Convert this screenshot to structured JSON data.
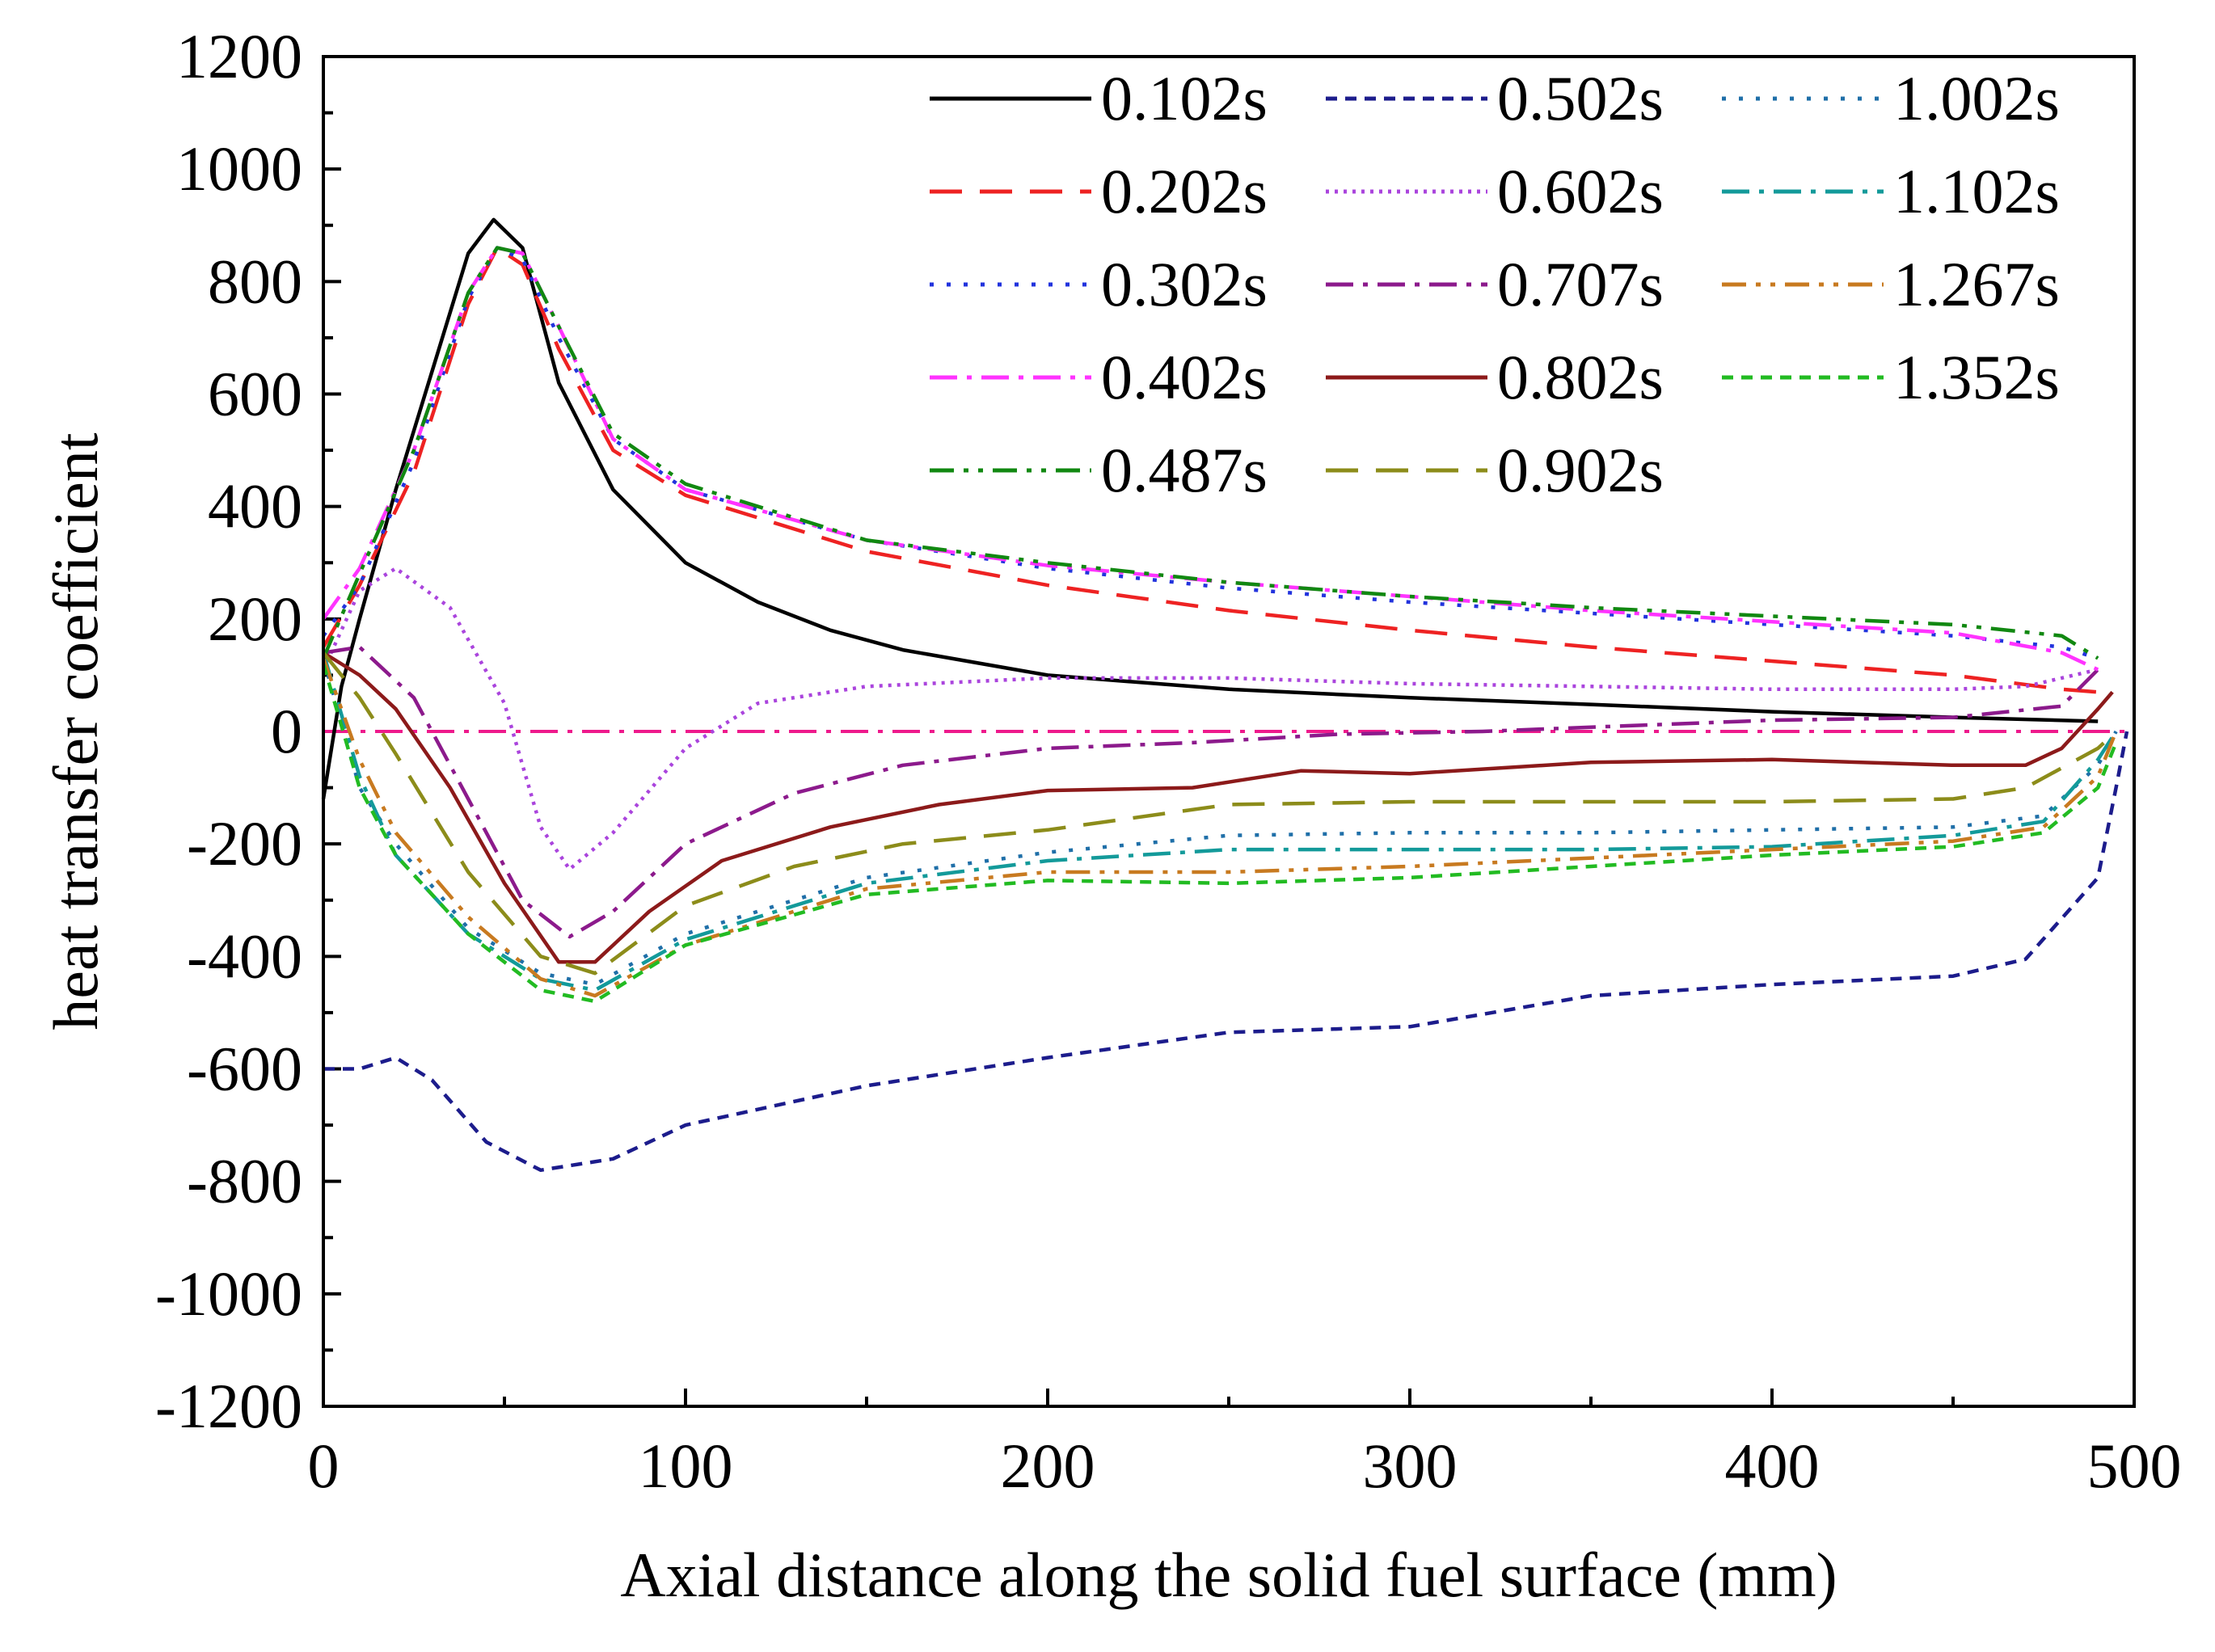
{
  "chart_data": {
    "type": "line",
    "title": "",
    "xlabel": "Axial distance along the solid fuel surface (mm)",
    "ylabel": "heat transfer coefficient",
    "xlim": [
      0,
      500
    ],
    "ylim": [
      -1200,
      1200
    ],
    "x_ticks": [
      0,
      100,
      200,
      300,
      400,
      500
    ],
    "y_ticks": [
      -1200,
      -1000,
      -800,
      -600,
      -400,
      -200,
      0,
      200,
      400,
      600,
      800,
      1000,
      1200
    ],
    "grid": false,
    "legend_position": "top-right",
    "series": [
      {
        "name": "0.102s",
        "color": "#000000",
        "dash": "solid",
        "points": [
          [
            0,
            -120
          ],
          [
            5,
            80
          ],
          [
            10,
            200
          ],
          [
            20,
            430
          ],
          [
            30,
            640
          ],
          [
            40,
            850
          ],
          [
            47,
            910
          ],
          [
            55,
            860
          ],
          [
            65,
            620
          ],
          [
            80,
            430
          ],
          [
            100,
            300
          ],
          [
            120,
            230
          ],
          [
            140,
            180
          ],
          [
            160,
            145
          ],
          [
            200,
            100
          ],
          [
            250,
            75
          ],
          [
            300,
            60
          ],
          [
            350,
            48
          ],
          [
            400,
            35
          ],
          [
            450,
            25
          ],
          [
            490,
            18
          ]
        ]
      },
      {
        "name": "0.502s",
        "color": "#1c1c8c",
        "dash": "shortdash",
        "points": [
          [
            0,
            -600
          ],
          [
            10,
            -600
          ],
          [
            20,
            -580
          ],
          [
            30,
            -620
          ],
          [
            45,
            -730
          ],
          [
            60,
            -780
          ],
          [
            80,
            -760
          ],
          [
            100,
            -700
          ],
          [
            150,
            -630
          ],
          [
            200,
            -580
          ],
          [
            250,
            -535
          ],
          [
            300,
            -525
          ],
          [
            350,
            -470
          ],
          [
            400,
            -450
          ],
          [
            450,
            -435
          ],
          [
            470,
            -405
          ],
          [
            490,
            -260
          ],
          [
            495,
            -100
          ],
          [
            498,
            0
          ]
        ]
      },
      {
        "name": "1.002s",
        "color": "#1f6fa8",
        "dash": "dotted",
        "points": [
          [
            0,
            130
          ],
          [
            10,
            -100
          ],
          [
            20,
            -200
          ],
          [
            40,
            -350
          ],
          [
            60,
            -430
          ],
          [
            75,
            -450
          ],
          [
            100,
            -360
          ],
          [
            150,
            -260
          ],
          [
            200,
            -215
          ],
          [
            250,
            -185
          ],
          [
            300,
            -180
          ],
          [
            350,
            -180
          ],
          [
            400,
            -175
          ],
          [
            450,
            -170
          ],
          [
            475,
            -150
          ],
          [
            490,
            -60
          ],
          [
            495,
            0
          ]
        ]
      },
      {
        "name": "0.202s",
        "color": "#ee2222",
        "dash": "longdash",
        "points": [
          [
            0,
            150
          ],
          [
            10,
            260
          ],
          [
            25,
            460
          ],
          [
            40,
            760
          ],
          [
            48,
            860
          ],
          [
            55,
            830
          ],
          [
            65,
            680
          ],
          [
            80,
            500
          ],
          [
            100,
            420
          ],
          [
            150,
            320
          ],
          [
            200,
            260
          ],
          [
            250,
            215
          ],
          [
            300,
            180
          ],
          [
            350,
            150
          ],
          [
            400,
            125
          ],
          [
            450,
            100
          ],
          [
            480,
            75
          ],
          [
            490,
            70
          ]
        ]
      },
      {
        "name": "0.602s",
        "color": "#aa44dd",
        "dash": "finedot",
        "points": [
          [
            0,
            110
          ],
          [
            10,
            250
          ],
          [
            20,
            290
          ],
          [
            35,
            220
          ],
          [
            50,
            50
          ],
          [
            60,
            -170
          ],
          [
            68,
            -245
          ],
          [
            80,
            -180
          ],
          [
            100,
            -30
          ],
          [
            120,
            50
          ],
          [
            150,
            80
          ],
          [
            200,
            95
          ],
          [
            250,
            95
          ],
          [
            300,
            85
          ],
          [
            350,
            80
          ],
          [
            400,
            75
          ],
          [
            450,
            75
          ],
          [
            470,
            80
          ],
          [
            490,
            110
          ]
        ]
      },
      {
        "name": "1.102s",
        "color": "#139a9a",
        "dash": "dashdot",
        "points": [
          [
            0,
            140
          ],
          [
            10,
            -80
          ],
          [
            20,
            -220
          ],
          [
            40,
            -360
          ],
          [
            60,
            -440
          ],
          [
            75,
            -460
          ],
          [
            100,
            -370
          ],
          [
            150,
            -270
          ],
          [
            200,
            -230
          ],
          [
            250,
            -210
          ],
          [
            300,
            -210
          ],
          [
            350,
            -210
          ],
          [
            400,
            -205
          ],
          [
            450,
            -185
          ],
          [
            475,
            -160
          ],
          [
            490,
            -50
          ],
          [
            495,
            0
          ]
        ]
      },
      {
        "name": "0.302s",
        "color": "#2233dd",
        "dash": "dotted",
        "points": [
          [
            0,
            170
          ],
          [
            10,
            260
          ],
          [
            25,
            480
          ],
          [
            40,
            770
          ],
          [
            48,
            860
          ],
          [
            55,
            840
          ],
          [
            65,
            700
          ],
          [
            80,
            520
          ],
          [
            100,
            430
          ],
          [
            150,
            340
          ],
          [
            200,
            290
          ],
          [
            250,
            255
          ],
          [
            300,
            230
          ],
          [
            350,
            210
          ],
          [
            400,
            190
          ],
          [
            450,
            170
          ],
          [
            480,
            150
          ],
          [
            490,
            130
          ]
        ]
      },
      {
        "name": "0.707s",
        "color": "#8c1a8c",
        "dash": "dashdot",
        "points": [
          [
            0,
            140
          ],
          [
            10,
            150
          ],
          [
            25,
            60
          ],
          [
            40,
            -120
          ],
          [
            55,
            -300
          ],
          [
            68,
            -365
          ],
          [
            80,
            -320
          ],
          [
            100,
            -200
          ],
          [
            130,
            -110
          ],
          [
            160,
            -60
          ],
          [
            200,
            -30
          ],
          [
            240,
            -20
          ],
          [
            280,
            -5
          ],
          [
            320,
            0
          ],
          [
            360,
            10
          ],
          [
            400,
            20
          ],
          [
            450,
            25
          ],
          [
            480,
            45
          ],
          [
            490,
            110
          ]
        ]
      },
      {
        "name": "1.267s",
        "color": "#c87a20",
        "dash": "dashdotdot",
        "points": [
          [
            0,
            130
          ],
          [
            10,
            -50
          ],
          [
            20,
            -180
          ],
          [
            40,
            -330
          ],
          [
            60,
            -440
          ],
          [
            75,
            -470
          ],
          [
            100,
            -380
          ],
          [
            150,
            -280
          ],
          [
            200,
            -250
          ],
          [
            250,
            -250
          ],
          [
            300,
            -240
          ],
          [
            350,
            -225
          ],
          [
            400,
            -210
          ],
          [
            450,
            -195
          ],
          [
            475,
            -170
          ],
          [
            490,
            -80
          ],
          [
            495,
            0
          ]
        ]
      },
      {
        "name": "0.402s",
        "color": "#ff33ff",
        "dash": "dashdot",
        "points": [
          [
            0,
            200
          ],
          [
            10,
            290
          ],
          [
            25,
            500
          ],
          [
            40,
            780
          ],
          [
            48,
            860
          ],
          [
            55,
            850
          ],
          [
            65,
            720
          ],
          [
            80,
            520
          ],
          [
            100,
            430
          ],
          [
            150,
            340
          ],
          [
            200,
            295
          ],
          [
            250,
            265
          ],
          [
            300,
            240
          ],
          [
            350,
            215
          ],
          [
            400,
            195
          ],
          [
            450,
            175
          ],
          [
            480,
            140
          ],
          [
            490,
            110
          ]
        ]
      },
      {
        "name": "0.802s",
        "color": "#8c1a1a",
        "dash": "solid",
        "points": [
          [
            0,
            140
          ],
          [
            10,
            100
          ],
          [
            20,
            40
          ],
          [
            35,
            -100
          ],
          [
            50,
            -270
          ],
          [
            65,
            -410
          ],
          [
            75,
            -410
          ],
          [
            90,
            -320
          ],
          [
            110,
            -230
          ],
          [
            140,
            -170
          ],
          [
            170,
            -130
          ],
          [
            200,
            -105
          ],
          [
            240,
            -100
          ],
          [
            270,
            -70
          ],
          [
            300,
            -75
          ],
          [
            350,
            -55
          ],
          [
            400,
            -50
          ],
          [
            450,
            -60
          ],
          [
            470,
            -60
          ],
          [
            480,
            -30
          ],
          [
            490,
            40
          ],
          [
            494,
            70
          ]
        ]
      },
      {
        "name": "1.352s",
        "color": "#22bb22",
        "dash": "shortdash",
        "points": [
          [
            0,
            120
          ],
          [
            10,
            -100
          ],
          [
            20,
            -220
          ],
          [
            40,
            -360
          ],
          [
            60,
            -460
          ],
          [
            75,
            -480
          ],
          [
            100,
            -380
          ],
          [
            150,
            -290
          ],
          [
            200,
            -265
          ],
          [
            250,
            -270
          ],
          [
            300,
            -260
          ],
          [
            350,
            -240
          ],
          [
            400,
            -220
          ],
          [
            450,
            -205
          ],
          [
            475,
            -180
          ],
          [
            490,
            -100
          ],
          [
            495,
            -20
          ]
        ]
      },
      {
        "name": "0.487s",
        "color": "#118811",
        "dash": "dashdotdot",
        "points": [
          [
            0,
            130
          ],
          [
            10,
            280
          ],
          [
            25,
            500
          ],
          [
            40,
            780
          ],
          [
            48,
            860
          ],
          [
            55,
            850
          ],
          [
            65,
            720
          ],
          [
            80,
            530
          ],
          [
            100,
            440
          ],
          [
            150,
            340
          ],
          [
            200,
            300
          ],
          [
            250,
            265
          ],
          [
            300,
            240
          ],
          [
            350,
            220
          ],
          [
            400,
            205
          ],
          [
            450,
            190
          ],
          [
            480,
            170
          ],
          [
            490,
            130
          ]
        ]
      },
      {
        "name": "0.902s",
        "color": "#8c8c1a",
        "dash": "longdash",
        "points": [
          [
            0,
            140
          ],
          [
            10,
            60
          ],
          [
            20,
            -40
          ],
          [
            40,
            -250
          ],
          [
            60,
            -400
          ],
          [
            75,
            -430
          ],
          [
            100,
            -310
          ],
          [
            130,
            -240
          ],
          [
            160,
            -200
          ],
          [
            200,
            -175
          ],
          [
            250,
            -130
          ],
          [
            300,
            -125
          ],
          [
            350,
            -125
          ],
          [
            400,
            -125
          ],
          [
            450,
            -120
          ],
          [
            470,
            -100
          ],
          [
            490,
            -30
          ],
          [
            495,
            0
          ]
        ]
      }
    ],
    "reference_line": {
      "y": 0,
      "color": "#ee1a8c",
      "dash": "dashdot"
    }
  }
}
